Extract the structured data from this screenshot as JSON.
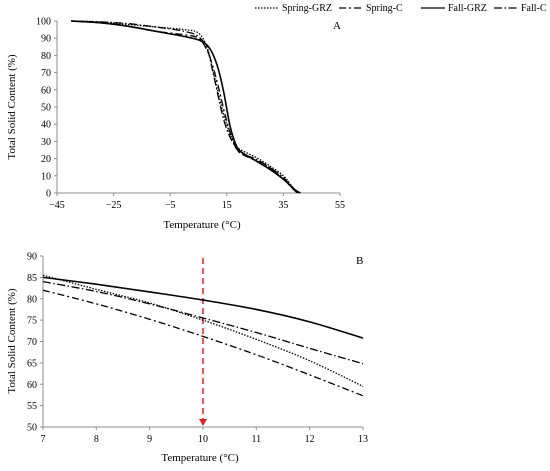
{
  "legend": {
    "placement": "top-right",
    "entries": [
      {
        "label": "Spring-GRZ",
        "dash": "1.5,1.5"
      },
      {
        "label": "Spring-C",
        "dash": "7,3,2,3"
      },
      {
        "label": "Fall-GRZ",
        "dash": ""
      },
      {
        "label": "Fall-C",
        "dash": "8,2.5,1.5,2.5"
      }
    ]
  },
  "chart_data": [
    {
      "panel": "A",
      "type": "line",
      "xlabel": "Temperature (°C)",
      "ylabel": "Total Solid Content (%)",
      "xlim": [
        -45,
        55
      ],
      "ylim": [
        0,
        100
      ],
      "xticks": [
        -45,
        -25,
        -5,
        15,
        35,
        55
      ],
      "yticks": [
        0,
        10,
        20,
        30,
        40,
        50,
        60,
        70,
        80,
        90,
        100
      ],
      "grid": false,
      "series": [
        {
          "name": "Spring-GRZ",
          "x": [
            -40,
            -30,
            -20,
            -10,
            0,
            5,
            8,
            10,
            12,
            14,
            16,
            18,
            20,
            25,
            30,
            35,
            38,
            40
          ],
          "y": [
            100,
            99.5,
            98,
            96.5,
            95,
            93,
            85,
            72,
            58,
            45,
            35,
            28,
            25,
            21,
            16,
            10,
            4,
            0
          ]
        },
        {
          "name": "Spring-C",
          "x": [
            -40,
            -30,
            -20,
            -10,
            0,
            5,
            8,
            10,
            12,
            14,
            16,
            18,
            20,
            25,
            30,
            35,
            38,
            40
          ],
          "y": [
            100,
            99,
            97,
            94,
            92,
            90,
            83,
            74,
            62,
            48,
            36,
            27,
            23,
            19,
            15,
            8,
            3,
            0
          ]
        },
        {
          "name": "Fall-GRZ",
          "x": [
            -40,
            -30,
            -20,
            -10,
            0,
            5,
            8,
            10,
            12,
            14,
            16,
            18,
            20,
            25,
            30,
            35,
            39,
            41
          ],
          "y": [
            100,
            99,
            97,
            94,
            91,
            89,
            86,
            81,
            72,
            58,
            40,
            29,
            24,
            19,
            14,
            8,
            2,
            0
          ]
        },
        {
          "name": "Fall-C",
          "x": [
            -40,
            -30,
            -20,
            -10,
            0,
            5,
            8,
            10,
            12,
            14,
            16,
            18,
            20,
            25,
            30,
            35,
            38,
            40
          ],
          "y": [
            100,
            99.5,
            98.5,
            96.5,
            94,
            91,
            84,
            71,
            56,
            42,
            33,
            27,
            23,
            20,
            15,
            9,
            3,
            0
          ]
        }
      ]
    },
    {
      "panel": "B",
      "type": "line",
      "xlabel": "Temperature (°C)",
      "ylabel": "Total Solid Content (%)",
      "xlim": [
        7,
        13
      ],
      "ylim": [
        50,
        90
      ],
      "xticks": [
        7,
        8,
        9,
        10,
        11,
        12,
        13
      ],
      "yticks": [
        50,
        55,
        60,
        65,
        70,
        75,
        80,
        85,
        90
      ],
      "grid": false,
      "annotation": {
        "type": "dashed-arrow",
        "x": 10,
        "from_y": 90,
        "to_y": 50,
        "color": "#e02020"
      },
      "series": [
        {
          "name": "Spring-GRZ",
          "x": [
            7,
            8,
            9,
            10,
            11,
            12,
            13
          ],
          "y": [
            85.5,
            82.2,
            79,
            75,
            70.5,
            65.5,
            59.5
          ]
        },
        {
          "name": "Spring-C",
          "x": [
            7,
            8,
            9,
            10,
            11,
            12,
            13
          ],
          "y": [
            82,
            78.8,
            75.2,
            71.2,
            66.9,
            62.2,
            57.3
          ]
        },
        {
          "name": "Fall-GRZ",
          "x": [
            7,
            8,
            9,
            10,
            11,
            12,
            13
          ],
          "y": [
            85,
            83.4,
            81.6,
            79.7,
            77.5,
            74.6,
            70.8
          ]
        },
        {
          "name": "Fall-C",
          "x": [
            7,
            8,
            9,
            10,
            11,
            12,
            13
          ],
          "y": [
            84,
            81.7,
            78.8,
            75.5,
            72.1,
            68.4,
            64.8
          ]
        }
      ]
    }
  ]
}
